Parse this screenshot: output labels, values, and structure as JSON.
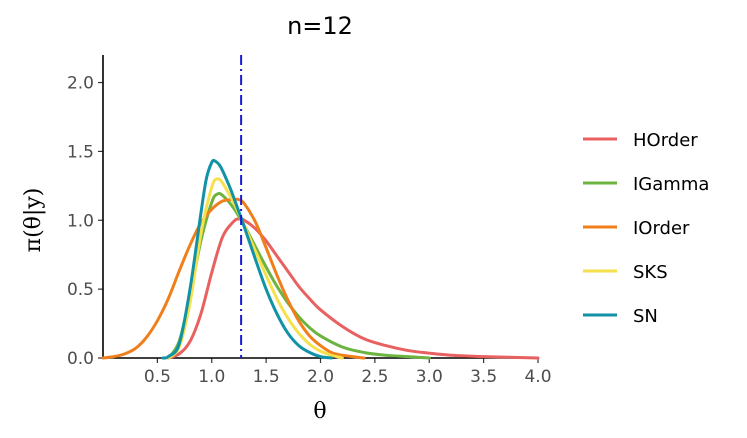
{
  "chart_data": {
    "type": "line",
    "title": "n=12",
    "xlabel": "θ",
    "ylabel": "π(θ|y)",
    "xlim": [
      0.0,
      4.0
    ],
    "ylim": [
      0.0,
      2.2
    ],
    "xticks": [
      0.5,
      1.0,
      1.5,
      2.0,
      2.5,
      3.0,
      3.5,
      4.0
    ],
    "xtick_labels": [
      "0.5",
      "1.0",
      "1.5",
      "2.0",
      "2.5",
      "3.0",
      "3.5",
      "4.0"
    ],
    "yticks": [
      0.0,
      0.5,
      1.0,
      1.5,
      2.0
    ],
    "ytick_labels": [
      "0.0",
      "0.5",
      "1.0",
      "1.5",
      "2.0"
    ],
    "grid": false,
    "legend_position": "right",
    "reference_line": {
      "x": 1.27,
      "style": "dash-dot",
      "color": "#1a1ad6"
    },
    "series": [
      {
        "name": "HOrder",
        "color": "#E8605F",
        "x": [
          0.6,
          0.7,
          0.8,
          0.9,
          1.0,
          1.1,
          1.2,
          1.25,
          1.3,
          1.4,
          1.5,
          1.6,
          1.7,
          1.8,
          1.9,
          2.0,
          2.2,
          2.4,
          2.6,
          2.8,
          3.0,
          3.2,
          3.5,
          4.0
        ],
        "y": [
          0.0,
          0.03,
          0.12,
          0.32,
          0.62,
          0.88,
          0.99,
          1.01,
          1.0,
          0.94,
          0.85,
          0.74,
          0.63,
          0.52,
          0.43,
          0.35,
          0.23,
          0.14,
          0.09,
          0.055,
          0.035,
          0.02,
          0.01,
          0.0
        ]
      },
      {
        "name": "IGamma",
        "color": "#6DB33F",
        "x": [
          0.6,
          0.7,
          0.8,
          0.9,
          1.0,
          1.05,
          1.1,
          1.2,
          1.3,
          1.4,
          1.5,
          1.6,
          1.7,
          1.8,
          1.9,
          2.0,
          2.2,
          2.4,
          2.6,
          2.8,
          3.0
        ],
        "y": [
          0.0,
          0.12,
          0.45,
          0.85,
          1.13,
          1.19,
          1.18,
          1.09,
          0.96,
          0.81,
          0.66,
          0.52,
          0.4,
          0.3,
          0.22,
          0.16,
          0.08,
          0.04,
          0.02,
          0.01,
          0.0
        ]
      },
      {
        "name": "IOrder",
        "color": "#F07F1B",
        "x": [
          0.0,
          0.1,
          0.2,
          0.3,
          0.4,
          0.5,
          0.6,
          0.7,
          0.8,
          0.9,
          1.0,
          1.1,
          1.2,
          1.25,
          1.3,
          1.4,
          1.5,
          1.6,
          1.7,
          1.8,
          1.9,
          2.0,
          2.1,
          2.2,
          2.4
        ],
        "y": [
          0.0,
          0.01,
          0.03,
          0.07,
          0.15,
          0.27,
          0.43,
          0.63,
          0.82,
          0.98,
          1.08,
          1.14,
          1.15,
          1.15,
          1.12,
          0.99,
          0.8,
          0.6,
          0.42,
          0.27,
          0.16,
          0.09,
          0.04,
          0.02,
          0.0
        ]
      },
      {
        "name": "SKS",
        "color": "#F6E04B",
        "x": [
          0.6,
          0.7,
          0.8,
          0.9,
          1.0,
          1.05,
          1.1,
          1.2,
          1.3,
          1.4,
          1.5,
          1.6,
          1.7,
          1.8,
          1.9,
          2.0,
          2.1,
          2.2
        ],
        "y": [
          0.0,
          0.08,
          0.4,
          0.9,
          1.24,
          1.3,
          1.27,
          1.13,
          0.96,
          0.78,
          0.6,
          0.43,
          0.29,
          0.18,
          0.1,
          0.05,
          0.02,
          0.0
        ]
      },
      {
        "name": "SN",
        "color": "#1192A6",
        "x": [
          0.55,
          0.6,
          0.7,
          0.8,
          0.9,
          0.95,
          1.0,
          1.03,
          1.08,
          1.15,
          1.2,
          1.3,
          1.4,
          1.5,
          1.6,
          1.7,
          1.8,
          1.9,
          2.0,
          2.1
        ],
        "y": [
          0.0,
          0.01,
          0.1,
          0.5,
          1.05,
          1.3,
          1.42,
          1.43,
          1.39,
          1.27,
          1.17,
          0.95,
          0.72,
          0.5,
          0.32,
          0.18,
          0.09,
          0.04,
          0.01,
          0.0
        ]
      }
    ]
  }
}
